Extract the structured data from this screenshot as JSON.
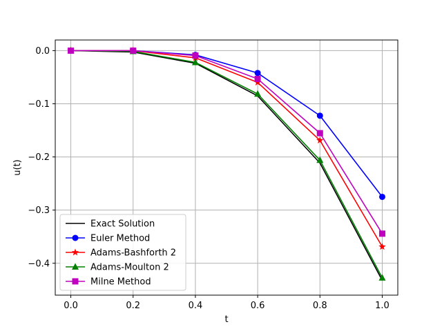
{
  "chart_data": {
    "type": "line",
    "title": "",
    "xlabel": "t",
    "ylabel": "u(t)",
    "xlim": [
      -0.05,
      1.05
    ],
    "ylim": [
      -0.46,
      0.02
    ],
    "xticks": [
      0.0,
      0.2,
      0.4,
      0.6,
      0.8,
      1.0
    ],
    "xtick_labels": [
      "0.0",
      "0.2",
      "0.4",
      "0.6",
      "0.8",
      "1.0"
    ],
    "yticks": [
      0.0,
      -0.1,
      -0.2,
      -0.3,
      -0.4
    ],
    "ytick_labels": [
      "0.0",
      "−0.1",
      "−0.2",
      "−0.3",
      "−0.4"
    ],
    "grid": true,
    "legend_position": "lower-left",
    "x": [
      0.0,
      0.2,
      0.4,
      0.6,
      0.8,
      1.0
    ],
    "series": [
      {
        "name": "Exact Solution",
        "color": "#000000",
        "marker": "none",
        "values": [
          0.0,
          -0.0027,
          -0.0237,
          -0.0852,
          -0.2114,
          -0.4323
        ]
      },
      {
        "name": "Euler Method",
        "color": "#0000ff",
        "marker": "circle",
        "values": [
          0.0,
          0.0,
          -0.008,
          -0.0421,
          -0.1224,
          -0.2751
        ]
      },
      {
        "name": "Adams-Bashforth 2",
        "color": "#ff0000",
        "marker": "star",
        "values": [
          0.0,
          0.0,
          -0.0136,
          -0.0598,
          -0.1688,
          -0.3689
        ]
      },
      {
        "name": "Adams-Moulton 2",
        "color": "#008000",
        "marker": "triangle",
        "values": [
          0.0,
          -0.0014,
          -0.0221,
          -0.0815,
          -0.2061,
          -0.4274
        ]
      },
      {
        "name": "Milne Method",
        "color": "#bf00bf",
        "marker": "square",
        "values": [
          0.0,
          0.0,
          -0.0093,
          -0.0532,
          -0.1553,
          -0.3443
        ]
      }
    ]
  }
}
